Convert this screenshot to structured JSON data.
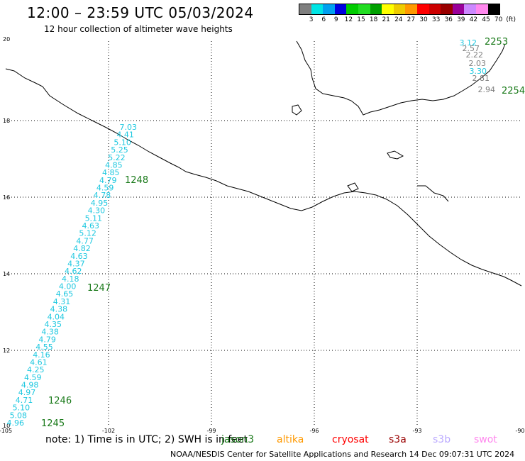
{
  "header": {
    "title": "12:00 – 23:59 UTC 05/03/2024",
    "subtitle": "12 hour collection of altimeter wave heights"
  },
  "legend": {
    "unit": "(ft)",
    "bins": [
      {
        "label": "",
        "color": "#7f7f7f"
      },
      {
        "label": "3",
        "color": "#00e5e5"
      },
      {
        "label": "6",
        "color": "#00a0f0"
      },
      {
        "label": "9",
        "color": "#0000e0"
      },
      {
        "label": "12",
        "color": "#00cc00"
      },
      {
        "label": "15",
        "color": "#22dd22"
      },
      {
        "label": "18",
        "color": "#00a000"
      },
      {
        "label": "21",
        "color": "#ffff00"
      },
      {
        "label": "24",
        "color": "#eecc00"
      },
      {
        "label": "27",
        "color": "#ff9900"
      },
      {
        "label": "30",
        "color": "#ff0000"
      },
      {
        "label": "33",
        "color": "#cc0000"
      },
      {
        "label": "36",
        "color": "#990000"
      },
      {
        "label": "39",
        "color": "#990099"
      },
      {
        "label": "42",
        "color": "#cc88ff"
      },
      {
        "label": "45",
        "color": "#ff88ee"
      },
      {
        "label": "70",
        "color": "#000000"
      }
    ]
  },
  "axes": {
    "lon_ticks": [
      "-105",
      "-102",
      "-99",
      "-96",
      "-93",
      "-90"
    ],
    "lat_ticks": [
      "20",
      "18",
      "16",
      "14",
      "12",
      "10"
    ]
  },
  "tracks": {
    "southwest": {
      "color": "#1ec8e0",
      "values": [
        "7.03",
        "4.41",
        "5.10",
        "5.25",
        "5.22",
        "4.85",
        "4.85",
        "4.79",
        "4.59",
        "4.78",
        "4.95",
        "4.30",
        "5.11",
        "4.63",
        "5.12",
        "4.77",
        "4.82",
        "4.63",
        "4.37",
        "4.62",
        "4.18",
        "4.00",
        "4.65",
        "4.31",
        "4.38",
        "4.04",
        "4.35",
        "4.38",
        "4.79",
        "4.55",
        "4.16",
        "4.61",
        "4.25",
        "4.59",
        "4.98",
        "4.97",
        "4.71",
        "5.10",
        "5.08",
        "4.96"
      ],
      "times": [
        "1248",
        "1247",
        "1246",
        "1245"
      ]
    },
    "northeast": {
      "values": [
        {
          "v": "3.12",
          "color": "#1ec8e0"
        },
        {
          "v": "2.57",
          "color": "#808080"
        },
        {
          "v": "2.22",
          "color": "#808080"
        },
        {
          "v": "2.03",
          "color": "#808080"
        },
        {
          "v": "3.30",
          "color": "#1ec8e0"
        },
        {
          "v": "2.81",
          "color": "#808080"
        },
        {
          "v": "2.94",
          "color": "#808080"
        }
      ],
      "times": [
        "2253",
        "2254"
      ]
    }
  },
  "footer": {
    "note": "note:  1) Time is in UTC; 2) SWH is in feet",
    "satellites": [
      {
        "name": "jason3",
        "color": "#1a7a1a"
      },
      {
        "name": "altika",
        "color": "#ff9900"
      },
      {
        "name": "cryosat",
        "color": "#ff0000"
      },
      {
        "name": "s3a",
        "color": "#990000"
      },
      {
        "name": "s3b",
        "color": "#bbaaff"
      },
      {
        "name": "swot",
        "color": "#ff88ee"
      }
    ],
    "credit": "NOAA/NESDIS Center for Satellite Applications and Research     14 Dec 09:07:31 UTC 2024"
  }
}
